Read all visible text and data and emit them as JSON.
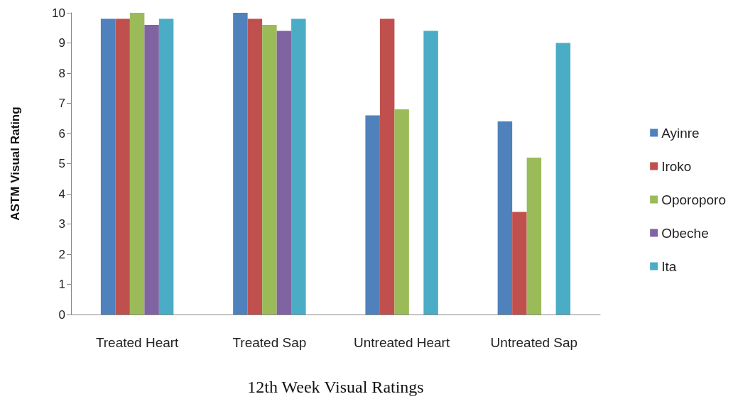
{
  "chart_data": {
    "type": "bar",
    "xlabel": "12th Week Visual Ratings",
    "ylabel": "ASTM Visual Rating",
    "categories": [
      "Treated Heart",
      "Treated Sap",
      "Untreated Heart",
      "Untreated Sap"
    ],
    "series": [
      {
        "name": "Ayinre",
        "color": "#4f81bd",
        "values": [
          9.8,
          10,
          6.6,
          6.4
        ]
      },
      {
        "name": "Iroko",
        "color": "#c0504d",
        "values": [
          9.8,
          9.8,
          9.8,
          3.4
        ]
      },
      {
        "name": "Oporoporo",
        "color": "#9bbb59",
        "values": [
          10,
          9.6,
          6.8,
          5.2
        ]
      },
      {
        "name": "Obeche",
        "color": "#8064a2",
        "values": [
          9.6,
          9.4,
          null,
          null
        ]
      },
      {
        "name": "Ita",
        "color": "#4bacc6",
        "values": [
          9.8,
          9.8,
          9.4,
          9.0
        ]
      }
    ],
    "ylim": [
      0,
      10
    ],
    "yticks": [
      0,
      1,
      2,
      3,
      4,
      5,
      6,
      7,
      8,
      9,
      10
    ],
    "grid": false,
    "legend": "right"
  }
}
